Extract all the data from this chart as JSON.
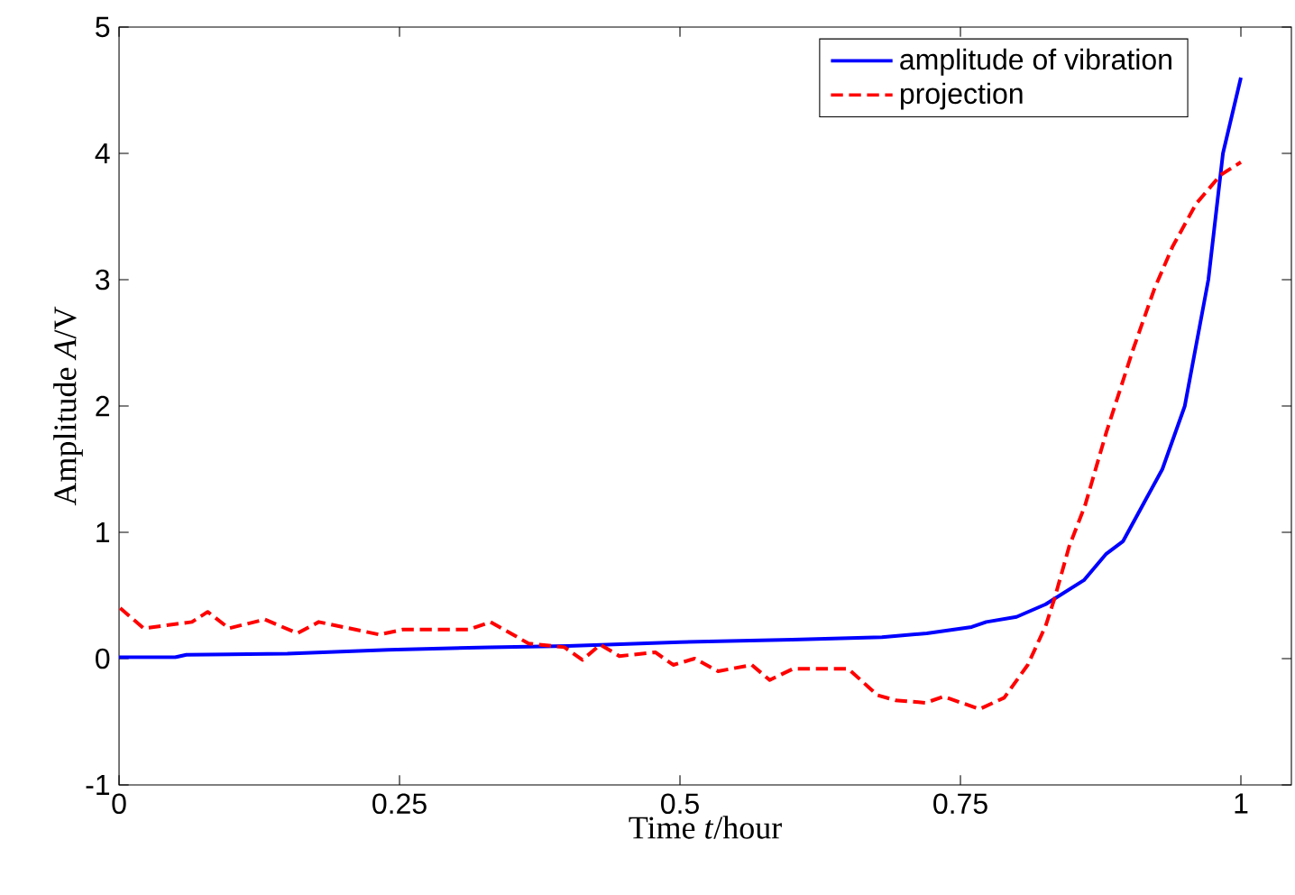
{
  "chart_data": {
    "type": "line",
    "xlabel": "Time  *t*/hour",
    "ylabel": "Amplitude  *A*/V",
    "xlim": [
      0,
      1.045
    ],
    "ylim": [
      -1,
      5
    ],
    "xticks": [
      0,
      0.25,
      0.5,
      0.75,
      1
    ],
    "yticks": [
      -1,
      0,
      1,
      2,
      3,
      4,
      5
    ],
    "legend": "top right",
    "grid": false,
    "series": [
      {
        "name": "amplitude of vibration",
        "color": "#0000ff",
        "line_style": "solid",
        "x": [
          0,
          0.05,
          0.06,
          0.15,
          0.24,
          0.33,
          0.4,
          0.5,
          0.6,
          0.68,
          0.72,
          0.76,
          0.773,
          0.8,
          0.826,
          0.86,
          0.88,
          0.895,
          0.93,
          0.95,
          0.971,
          0.984,
          1.0
        ],
        "values": [
          0.01,
          0.01,
          0.03,
          0.04,
          0.07,
          0.09,
          0.1,
          0.13,
          0.15,
          0.17,
          0.2,
          0.25,
          0.29,
          0.33,
          0.43,
          0.62,
          0.83,
          0.93,
          1.5,
          2.0,
          3.0,
          4.0,
          4.6
        ]
      },
      {
        "name": "projection",
        "color": "#ff0000",
        "line_style": "dashed",
        "x": [
          0.001,
          0.022,
          0.065,
          0.079,
          0.098,
          0.13,
          0.159,
          0.178,
          0.232,
          0.253,
          0.312,
          0.331,
          0.365,
          0.397,
          0.413,
          0.429,
          0.446,
          0.478,
          0.494,
          0.513,
          0.534,
          0.564,
          0.58,
          0.601,
          0.65,
          0.676,
          0.692,
          0.719,
          0.735,
          0.767,
          0.789,
          0.81,
          0.826,
          0.834,
          0.847,
          0.861,
          0.88,
          0.904,
          0.923,
          0.939,
          0.96,
          0.982,
          1.0
        ],
        "values": [
          0.4,
          0.24,
          0.29,
          0.37,
          0.24,
          0.31,
          0.2,
          0.29,
          0.19,
          0.23,
          0.23,
          0.29,
          0.12,
          0.09,
          -0.01,
          0.11,
          0.02,
          0.05,
          -0.05,
          0.0,
          -0.1,
          -0.05,
          -0.17,
          -0.08,
          -0.08,
          -0.29,
          -0.33,
          -0.35,
          -0.3,
          -0.4,
          -0.31,
          -0.05,
          0.26,
          0.48,
          0.89,
          1.21,
          1.79,
          2.45,
          2.93,
          3.26,
          3.6,
          3.83,
          3.93
        ]
      }
    ]
  }
}
